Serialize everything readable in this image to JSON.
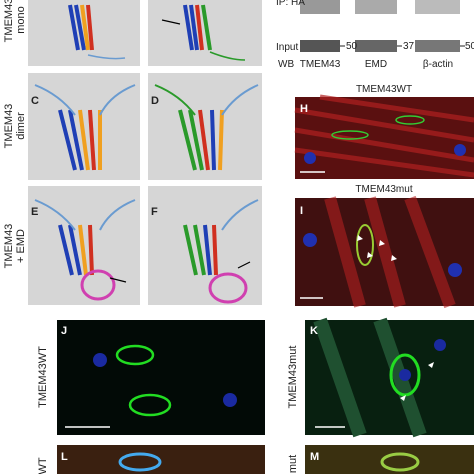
{
  "blot": {
    "top_label": "IP: HA",
    "input_label": "Input",
    "markers": [
      "50",
      "37",
      "50"
    ],
    "wb_label": "WB",
    "lanes": [
      "TMEM43",
      "EMD",
      "β-actin"
    ]
  },
  "structures": {
    "row_labels": [
      [
        "TMEM43",
        "mono"
      ],
      [
        "TMEM43",
        "dimer"
      ],
      [
        "TMEM43",
        "+ EMD"
      ]
    ],
    "letters": [
      "C",
      "D",
      "E",
      "F"
    ]
  },
  "microscopy": {
    "letters": [
      "H",
      "I",
      "J",
      "K",
      "L",
      "M"
    ],
    "titles": [
      "TMEM43WT",
      "TMEM43mut"
    ],
    "side_labels": [
      "TMEM43WT",
      "TMEM43mut",
      "WT",
      "mut"
    ]
  }
}
